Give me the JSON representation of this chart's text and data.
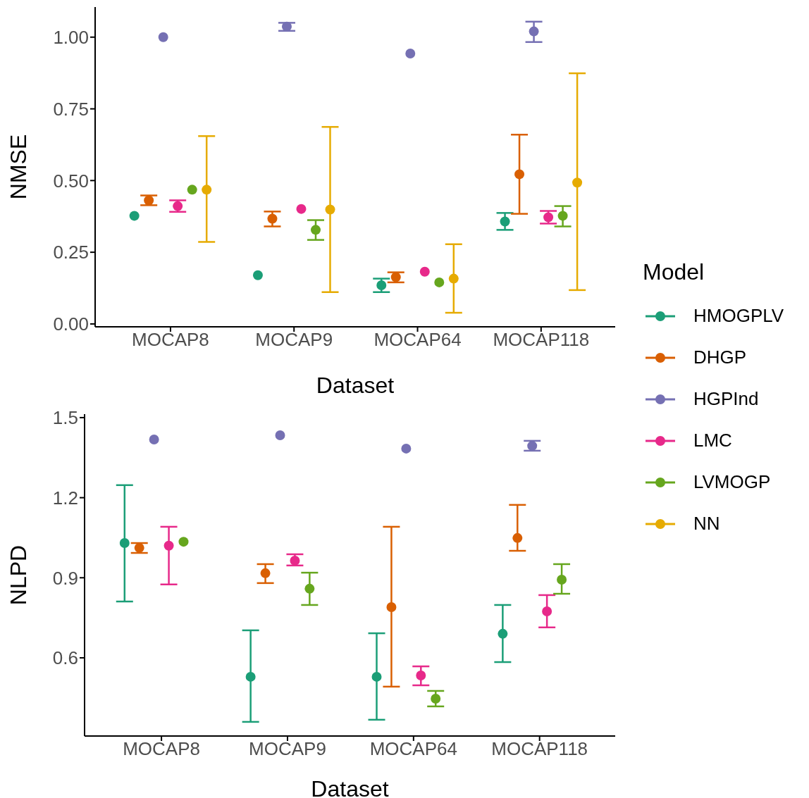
{
  "chart_data": [
    {
      "type": "scatter",
      "xlabel": "Dataset",
      "ylabel": "NMSE",
      "categories": [
        "MOCAP8",
        "MOCAP9",
        "MOCAP64",
        "MOCAP118"
      ],
      "ylim": [
        -0.01,
        1.105
      ],
      "yticks": [
        {
          "value": 0,
          "label": "0.00"
        },
        {
          "value": 0.25,
          "label": "0.25"
        },
        {
          "value": 0.5,
          "label": "0.50"
        },
        {
          "value": 0.75,
          "label": "0.75"
        },
        {
          "value": 1,
          "label": "1.00"
        }
      ],
      "marker": "circle",
      "legend": "right",
      "legend_title": "Model",
      "series": [
        {
          "name": "HMOGPLV",
          "color": "#1b9e77",
          "values": [
            0.377,
            0.17,
            0.135,
            0.357
          ],
          "errors": [
            null,
            null,
            [
              0.111,
              0.158
            ],
            [
              0.328,
              0.387
            ]
          ]
        },
        {
          "name": "DHGP",
          "color": "#d95f02",
          "values": [
            0.431,
            0.367,
            0.163,
            0.522
          ],
          "errors": [
            [
              0.414,
              0.448
            ],
            [
              0.34,
              0.392
            ],
            [
              0.145,
              0.18
            ],
            [
              0.384,
              0.66
            ]
          ]
        },
        {
          "name": "HGPInd",
          "color": "#7570b3",
          "values": [
            1.0,
            1.037,
            0.943,
            1.02
          ],
          "errors": [
            null,
            [
              1.022,
              1.05
            ],
            null,
            [
              0.983,
              1.054
            ]
          ]
        },
        {
          "name": "LMC",
          "color": "#e7298a",
          "values": [
            0.411,
            0.401,
            0.182,
            0.372
          ],
          "errors": [
            [
              0.391,
              0.431
            ],
            null,
            null,
            [
              0.35,
              0.394
            ]
          ]
        },
        {
          "name": "LVMOGP",
          "color": "#66a61e",
          "values": [
            0.468,
            0.328,
            0.145,
            0.377
          ],
          "errors": [
            null,
            [
              0.293,
              0.362
            ],
            null,
            [
              0.34,
              0.411
            ]
          ]
        },
        {
          "name": "NN",
          "color": "#e6ab02",
          "values": [
            0.468,
            0.399,
            0.158,
            0.493
          ],
          "errors": [
            [
              0.286,
              0.655
            ],
            [
              0.111,
              0.687
            ],
            [
              0.039,
              0.278
            ],
            [
              0.118,
              0.874
            ]
          ]
        }
      ]
    },
    {
      "type": "scatter",
      "xlabel": "Dataset",
      "ylabel": "NLPD",
      "categories": [
        "MOCAP8",
        "MOCAP9",
        "MOCAP64",
        "MOCAP118"
      ],
      "ylim": [
        0.307,
        1.513
      ],
      "yticks": [
        0.6,
        0.9,
        1.2,
        1.5
      ],
      "marker": "circle",
      "series": [
        {
          "color": "#1b9e77",
          "values": [
            1.03,
            0.529,
            0.529,
            0.69
          ],
          "errors": [
            [
              0.811,
              1.247
            ],
            [
              0.36,
              0.703
            ],
            [
              0.368,
              0.692
            ],
            [
              0.584,
              0.798
            ]
          ]
        },
        {
          "color": "#d95f02",
          "values": [
            1.012,
            0.917,
            0.79,
            1.049
          ],
          "errors": [
            [
              0.993,
              1.03
            ],
            [
              0.88,
              0.951
            ],
            [
              0.492,
              1.091
            ],
            [
              1.001,
              1.173
            ]
          ]
        },
        {
          "color": "#7570b3",
          "values": [
            1.418,
            1.434,
            1.384,
            1.394
          ],
          "errors": [
            null,
            null,
            null,
            [
              1.376,
              1.413
            ]
          ]
        },
        {
          "color": "#e7298a",
          "values": [
            1.02,
            0.964,
            0.534,
            0.774
          ],
          "errors": [
            [
              0.875,
              1.091
            ],
            [
              0.946,
              0.988
            ],
            [
              0.497,
              0.568
            ],
            [
              0.714,
              0.835
            ]
          ]
        },
        {
          "color": "#66a61e",
          "values": [
            1.035,
            0.859,
            0.447,
            0.893
          ],
          "errors": [
            null,
            [
              0.798,
              0.919
            ],
            [
              0.418,
              0.476
            ],
            [
              0.84,
              0.951
            ]
          ]
        }
      ]
    }
  ]
}
